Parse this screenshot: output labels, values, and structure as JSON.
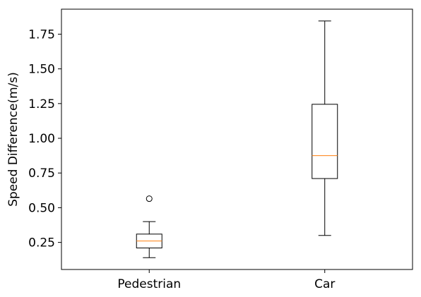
{
  "chart_data": {
    "type": "boxplot",
    "title": "",
    "xlabel": "",
    "ylabel": "Speed Difference(m/s)",
    "categories": [
      "Pedestrian",
      "Car"
    ],
    "ylim": [
      0.055,
      1.93
    ],
    "yticks": [
      0.25,
      0.5,
      0.75,
      1.0,
      1.25,
      1.5,
      1.75
    ],
    "ytick_labels": [
      "0.25",
      "0.50",
      "0.75",
      "1.00",
      "1.25",
      "1.50",
      "1.75"
    ],
    "grid": false,
    "legend": "none",
    "boxes": [
      {
        "category": "Pedestrian",
        "whisker_low": 0.14,
        "q1": 0.21,
        "median": 0.26,
        "q3": 0.31,
        "whisker_high": 0.4,
        "outliers": [
          0.565
        ]
      },
      {
        "category": "Car",
        "whisker_low": 0.3,
        "q1": 0.71,
        "median": 0.875,
        "q3": 1.245,
        "whisker_high": 1.845,
        "outliers": []
      }
    ],
    "colors": {
      "box": "#000000",
      "median": "#ff7f0e"
    }
  }
}
